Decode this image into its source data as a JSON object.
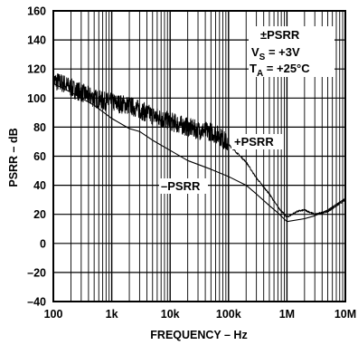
{
  "chart_data": {
    "type": "line",
    "xlabel": "FREQUENCY – Hz",
    "ylabel": "PSRR – dB",
    "xscale": "log",
    "xlim": [
      100,
      10000000
    ],
    "ylim": [
      -40,
      160
    ],
    "grid": true,
    "x_ticks": [
      {
        "value": 100,
        "label": "100"
      },
      {
        "value": 1000,
        "label": "1k"
      },
      {
        "value": 10000,
        "label": "10k"
      },
      {
        "value": 100000,
        "label": "100k"
      },
      {
        "value": 1000000,
        "label": "1M"
      },
      {
        "value": 10000000,
        "label": "10M"
      }
    ],
    "y_ticks": [
      {
        "value": 160,
        "label": "160"
      },
      {
        "value": 140,
        "label": "140"
      },
      {
        "value": 120,
        "label": "120"
      },
      {
        "value": 100,
        "label": "100"
      },
      {
        "value": 80,
        "label": "80"
      },
      {
        "value": 60,
        "label": "60"
      },
      {
        "value": 40,
        "label": "40"
      },
      {
        "value": 20,
        "label": "20"
      },
      {
        "value": 0,
        "label": "0"
      },
      {
        "value": -20,
        "label": "–20"
      },
      {
        "value": -40,
        "label": "–40"
      }
    ],
    "legend_box": {
      "line1": "±PSRR",
      "line2_main": "V",
      "line2_sub": "S",
      "line2_rest": " = +3V",
      "line3_main": "T",
      "line3_sub": "A",
      "line3_rest": " = +25°C",
      "placement": "top-right"
    },
    "series": [
      {
        "name": "+PSRR",
        "noisy": true,
        "points": [
          [
            100,
            112
          ],
          [
            150,
            110
          ],
          [
            200,
            107
          ],
          [
            300,
            104
          ],
          [
            500,
            100
          ],
          [
            700,
            98
          ],
          [
            1000,
            97
          ],
          [
            2000,
            95
          ],
          [
            3000,
            92
          ],
          [
            5000,
            88
          ],
          [
            7000,
            86
          ],
          [
            10000,
            84
          ],
          [
            20000,
            80
          ],
          [
            30000,
            78
          ],
          [
            50000,
            77
          ],
          [
            70000,
            74
          ],
          [
            100000,
            68
          ],
          [
            200000,
            56
          ],
          [
            300000,
            45
          ],
          [
            500000,
            34
          ],
          [
            700000,
            25
          ],
          [
            1000000,
            18
          ],
          [
            1500000,
            22
          ],
          [
            2000000,
            23
          ],
          [
            3000000,
            20
          ],
          [
            5000000,
            22
          ],
          [
            10000000,
            30
          ]
        ]
      },
      {
        "name": "–PSRR",
        "noisy": false,
        "points": [
          [
            100,
            110
          ],
          [
            200,
            104
          ],
          [
            300,
            100
          ],
          [
            500,
            95
          ],
          [
            1000,
            86
          ],
          [
            2000,
            79
          ],
          [
            3000,
            77
          ],
          [
            5000,
            71
          ],
          [
            10000,
            64
          ],
          [
            20000,
            57
          ],
          [
            50000,
            51
          ],
          [
            100000,
            46
          ],
          [
            200000,
            40
          ],
          [
            300000,
            34
          ],
          [
            500000,
            26
          ],
          [
            700000,
            21
          ],
          [
            1000000,
            15
          ],
          [
            2000000,
            17
          ],
          [
            3000000,
            19
          ],
          [
            5000000,
            23
          ],
          [
            10000000,
            31
          ]
        ]
      }
    ]
  }
}
